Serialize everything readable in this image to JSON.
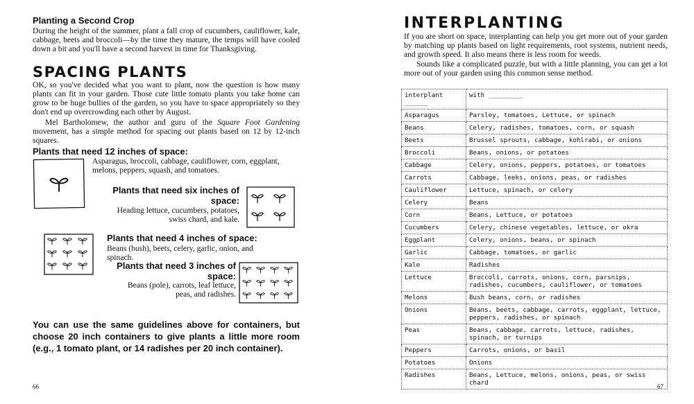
{
  "left_page": {
    "section": {
      "heading": "Planting a Second Crop",
      "body": "During the height of the summer, plant a fall crop of cucumbers, cauliflower, kale, cabbage, beets and broccoli—by the time they mature, the temps will have cooled down a bit and you'll have a second harvest in time for Thanksgiving."
    },
    "title": "SPACING PLANTS",
    "paragraph_1": "OK, so you've decided what you want to plant, now the question is how many plants can fit in your garden. Those cute little tomato plants you take home can grow to be huge bullies of the garden, so you have to space appropriately so they don't end up overcrowding each other by August.",
    "paragraph_2": {
      "before": "Mel Bartholomew, the author and guru of the ",
      "italic": "Square Foot Gardening",
      "after": " movement, has a simple method for spacing out plants based on 12 by 12-inch squares."
    },
    "groups": [
      {
        "heading": "Plants that need 12 inches of space:",
        "text": "Asparagus, broccoli, cabbage, cauliflower, corn, eggplant, melons, peppers, squash, and tomatoes."
      },
      {
        "heading": "Plants that need six inches of space:",
        "text": "Heading lettuce, cucumbers, potatoes, swiss chard, and kale."
      },
      {
        "heading": "Plants that need 4 inches of space:",
        "text": "Beans (bush), beets, celery, garlic, onion, and spinach."
      },
      {
        "heading": "Plants that need 3 inches of space:",
        "text": "Beans (pole), carrots, leaf lettuce, peas, and radishes."
      }
    ],
    "closing": "You can use the same guidelines above for containers, but choose 20 inch containers to give plants a little more room (e.g., 1 tomato plant, or 14 radishes per 20 inch container).",
    "page_number": "66"
  },
  "right_page": {
    "title": "INTERPLANTING",
    "paragraph_1": "If you are short on space, interplanting can help you get more out of your garden by matching up plants based on light requirements, root systems, nutrient needs, and growth speed. It also means there is less room for weeds.",
    "paragraph_2": "Sounds like a complicated puzzle, but with a little planning, you can get a lot more out of your garden using this common sense method.",
    "table": {
      "header": [
        "interplant ______",
        "with _________"
      ],
      "rows": [
        [
          "Asparagus",
          "Parsley, tomatoes, Lettuce, or spinach"
        ],
        [
          "Beans",
          "Celery, radishes, tomatoes, corn, or squash"
        ],
        [
          "Beets",
          "Brussel sprouts, cabbage, kohlrabi, or onions"
        ],
        [
          "Broccoli",
          "Beans, onions, or potatoes"
        ],
        [
          "Cabbage",
          "Celery, onions, peppers, potatoes, or tomatoes"
        ],
        [
          "Carrots",
          "Cabbage, leeks, onions, peas, or radishes"
        ],
        [
          "Cauliflower",
          "Lettuce, spinach, or celery"
        ],
        [
          "Celery",
          "Beans"
        ],
        [
          "Corn",
          "Beans, Lettuce, or potatoes"
        ],
        [
          "Cucumbers",
          "Celery, chinese vegetables, lettuce, or okra"
        ],
        [
          "Eggplant",
          "Celery, onions, beans, or spinach"
        ],
        [
          "Garlic",
          "Cabbage, tomatoes, or garlic"
        ],
        [
          "Kale",
          "Radishes"
        ],
        [
          "Lettuce",
          "Broccoli, carrots, onions, corn, parsnips, radishes, cucumbers, cauliflower, or tomatoes"
        ],
        [
          "Melons",
          "Bush beans, corn, or radishes"
        ],
        [
          "Onions",
          "Beans, beets, cabbage, carrots, eggplant, lettuce, peppers, radishes, or spinach"
        ],
        [
          "Peas",
          "Beans, cabbage, carrots, lettuce, radishes, spinach, or turnips"
        ],
        [
          "Peppers",
          "Carrots, onions, or basil"
        ],
        [
          "Potatoes",
          "Onions"
        ],
        [
          "Radishes",
          "Beans, Lettuce, melons, onions, peas, or swiss chard"
        ]
      ]
    },
    "page_number": "67"
  }
}
